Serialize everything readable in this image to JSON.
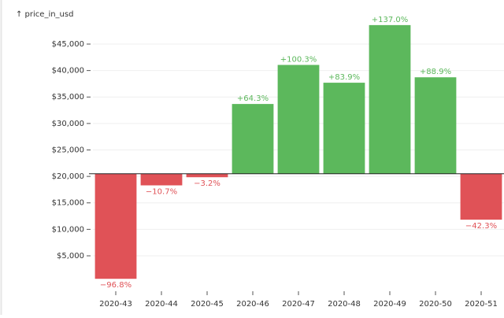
{
  "chart_data": {
    "type": "bar",
    "y_label": "↑ price_in_usd",
    "categories": [
      "2020-43",
      "2020-44",
      "2020-45",
      "2020-46",
      "2020-47",
      "2020-48",
      "2020-49",
      "2020-50",
      "2020-51"
    ],
    "values": [
      656,
      18307,
      19844,
      33682,
      41062,
      37700,
      48585,
      38725,
      11829
    ],
    "value_labels": [
      "−96.8%",
      "−10.7%",
      "−3.2%",
      "+64.3%",
      "+100.3%",
      "+83.9%",
      "+137.0%",
      "+88.9%",
      "−42.3%"
    ],
    "colors": {
      "up": "#5cb85c",
      "down": "#e05257"
    },
    "ylim": [
      -950,
      51840
    ],
    "yticks": [
      {
        "value": 5000,
        "label": "$5,000"
      },
      {
        "value": 10000,
        "label": "$10,000"
      },
      {
        "value": 15000,
        "label": "$15,000"
      },
      {
        "value": 20000,
        "label": "$20,000"
      },
      {
        "value": 25000,
        "label": "$25,000"
      },
      {
        "value": 30000,
        "label": "$30,000"
      },
      {
        "value": 35000,
        "label": "$35,000"
      },
      {
        "value": 40000,
        "label": "$40,000"
      },
      {
        "value": 45000,
        "label": "$45,000"
      }
    ],
    "grid": true
  }
}
